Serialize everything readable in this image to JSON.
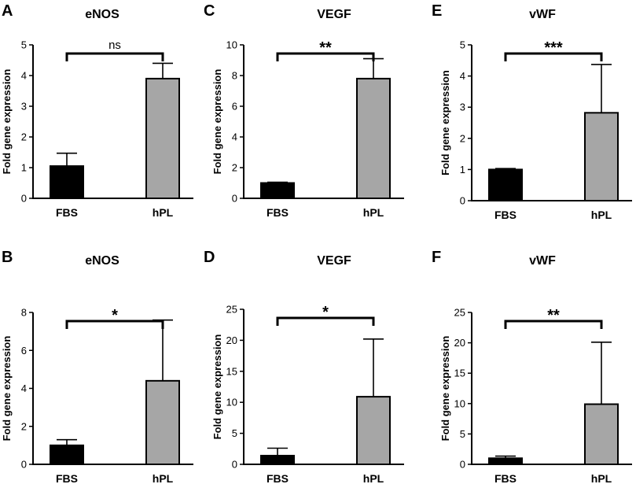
{
  "figure": {
    "bg": "#ffffff",
    "bar_colors": [
      "#000000",
      "#a6a6a6"
    ]
  },
  "chart_data": [
    {
      "id": "A",
      "type": "bar",
      "letter": "A",
      "title": "eNOS",
      "ylabel": "Fold gene expression",
      "categories": [
        "FBS",
        "hPL"
      ],
      "values": [
        1.05,
        3.9
      ],
      "errors": [
        0.42,
        0.5
      ],
      "ylim": [
        0,
        5
      ],
      "yticks": [
        0,
        1,
        2,
        3,
        4,
        5
      ],
      "significance": "ns"
    },
    {
      "id": "C",
      "type": "bar",
      "letter": "C",
      "title": "VEGF",
      "ylabel": "Fold gene expression",
      "categories": [
        "FBS",
        "hPL"
      ],
      "values": [
        1.0,
        7.8
      ],
      "errors": [
        0.05,
        1.3
      ],
      "ylim": [
        0,
        10
      ],
      "yticks": [
        0,
        2,
        4,
        6,
        8,
        10
      ],
      "significance": "**"
    },
    {
      "id": "E",
      "type": "bar",
      "letter": "E",
      "title": "vWF",
      "ylabel": "Fold gene expression",
      "categories": [
        "FBS",
        "hPL"
      ],
      "values": [
        1.0,
        2.82
      ],
      "errors": [
        0.03,
        1.55
      ],
      "ylim": [
        0,
        5
      ],
      "yticks": [
        0,
        1,
        2,
        3,
        4,
        5
      ],
      "significance": "***"
    },
    {
      "id": "B",
      "type": "bar",
      "letter": "B",
      "title": "eNOS",
      "ylabel": "Fold gene expression",
      "categories": [
        "FBS",
        "hPL"
      ],
      "values": [
        1.0,
        4.4
      ],
      "errors": [
        0.3,
        3.2
      ],
      "ylim": [
        0,
        8
      ],
      "yticks": [
        0,
        2,
        4,
        6,
        8
      ],
      "significance": "*"
    },
    {
      "id": "D",
      "type": "bar",
      "letter": "D",
      "title": "VEGF",
      "ylabel": "Fold gene expression",
      "categories": [
        "FBS",
        "hPL"
      ],
      "values": [
        1.4,
        10.9
      ],
      "errors": [
        1.2,
        9.3
      ],
      "ylim": [
        0,
        25
      ],
      "yticks": [
        0,
        5,
        10,
        15,
        20,
        25
      ],
      "significance": "*"
    },
    {
      "id": "F",
      "type": "bar",
      "letter": "F",
      "title": "vWF",
      "ylabel": "Fold gene expression",
      "categories": [
        "FBS",
        "hPL"
      ],
      "values": [
        1.0,
        9.9
      ],
      "errors": [
        0.35,
        10.2
      ],
      "ylim": [
        0,
        25
      ],
      "yticks": [
        0,
        5,
        10,
        15,
        20,
        25
      ],
      "significance": "**"
    }
  ]
}
